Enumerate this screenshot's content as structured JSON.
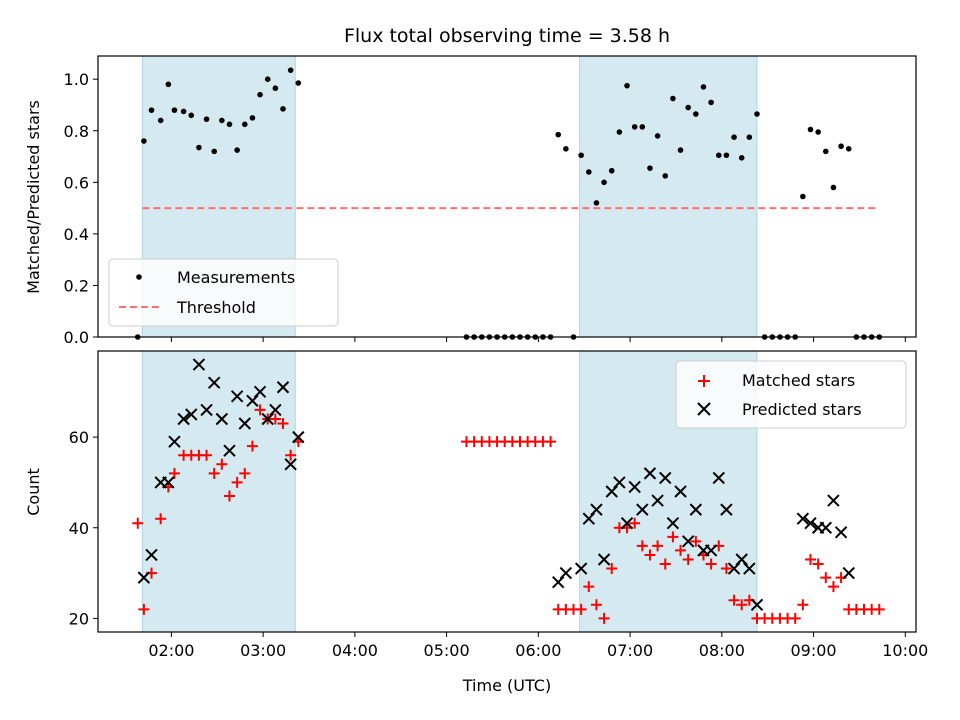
{
  "chart_data": [
    {
      "type": "scatter",
      "title": "Flux total observing time = 3.58 h",
      "xlabel": "",
      "ylabel": "Matched/Predicted stars",
      "ylim": [
        0,
        1.09
      ],
      "yticks": [
        "0.0",
        "0.2",
        "0.4",
        "0.6",
        "0.8",
        "1.0"
      ],
      "xlim": [
        "01:12",
        "10:07"
      ],
      "x_tick_labels_shown": false,
      "grid": false,
      "legend": "lower-left",
      "shaded_intervals": [
        [
          "01:41",
          "03:21"
        ],
        [
          "06:27",
          "08:23"
        ]
      ],
      "series": [
        {
          "name": "Measurements",
          "style": "black dots",
          "points": [
            [
              "01:38",
              0.0
            ],
            [
              "01:42",
              0.76
            ],
            [
              "01:47",
              0.88
            ],
            [
              "01:53",
              0.84
            ],
            [
              "01:58",
              0.98
            ],
            [
              "02:02",
              0.88
            ],
            [
              "02:08",
              0.875
            ],
            [
              "02:13",
              0.86
            ],
            [
              "02:18",
              0.735
            ],
            [
              "02:23",
              0.845
            ],
            [
              "02:28",
              0.72
            ],
            [
              "02:33",
              0.84
            ],
            [
              "02:38",
              0.825
            ],
            [
              "02:43",
              0.725
            ],
            [
              "02:48",
              0.825
            ],
            [
              "02:53",
              0.85
            ],
            [
              "02:58",
              0.94
            ],
            [
              "03:03",
              1.0
            ],
            [
              "03:08",
              0.965
            ],
            [
              "03:13",
              0.885
            ],
            [
              "03:18",
              1.035
            ],
            [
              "03:23",
              0.985
            ],
            [
              "05:13",
              0.0
            ],
            [
              "05:18",
              0.0
            ],
            [
              "05:23",
              0.0
            ],
            [
              "05:28",
              0.0
            ],
            [
              "05:33",
              0.0
            ],
            [
              "05:38",
              0.0
            ],
            [
              "05:43",
              0.0
            ],
            [
              "05:48",
              0.0
            ],
            [
              "05:53",
              0.0
            ],
            [
              "05:58",
              0.0
            ],
            [
              "06:03",
              0.0
            ],
            [
              "06:08",
              0.0
            ],
            [
              "06:13",
              0.785
            ],
            [
              "06:18",
              0.73
            ],
            [
              "06:23",
              0.0
            ],
            [
              "06:28",
              0.705
            ],
            [
              "06:33",
              0.64
            ],
            [
              "06:38",
              0.52
            ],
            [
              "06:43",
              0.6
            ],
            [
              "06:48",
              0.645
            ],
            [
              "06:53",
              0.795
            ],
            [
              "06:58",
              0.975
            ],
            [
              "07:03",
              0.815
            ],
            [
              "07:08",
              0.815
            ],
            [
              "07:13",
              0.655
            ],
            [
              "07:18",
              0.78
            ],
            [
              "07:23",
              0.625
            ],
            [
              "07:28",
              0.925
            ],
            [
              "07:33",
              0.725
            ],
            [
              "07:38",
              0.89
            ],
            [
              "07:43",
              0.865
            ],
            [
              "07:48",
              0.97
            ],
            [
              "07:53",
              0.91
            ],
            [
              "07:58",
              0.705
            ],
            [
              "08:03",
              0.705
            ],
            [
              "08:08",
              0.775
            ],
            [
              "08:13",
              0.695
            ],
            [
              "08:18",
              0.775
            ],
            [
              "08:23",
              0.865
            ],
            [
              "08:28",
              0.0
            ],
            [
              "08:33",
              0.0
            ],
            [
              "08:38",
              0.0
            ],
            [
              "08:43",
              0.0
            ],
            [
              "08:48",
              0.0
            ],
            [
              "08:53",
              0.545
            ],
            [
              "08:58",
              0.805
            ],
            [
              "09:03",
              0.795
            ],
            [
              "09:08",
              0.72
            ],
            [
              "09:13",
              0.58
            ],
            [
              "09:18",
              0.74
            ],
            [
              "09:23",
              0.73
            ],
            [
              "09:28",
              0.0
            ],
            [
              "09:33",
              0.0
            ],
            [
              "09:38",
              0.0
            ],
            [
              "09:43",
              0.0
            ]
          ]
        },
        {
          "name": "Threshold",
          "style": "red dashed line",
          "points": [
            [
              "01:41",
              0.5
            ],
            [
              "09:43",
              0.5
            ]
          ]
        }
      ]
    },
    {
      "type": "scatter",
      "title": "",
      "xlabel": "Time (UTC)",
      "ylabel": "Count",
      "ylim": [
        17,
        79
      ],
      "yticks": [
        "20",
        "40",
        "60"
      ],
      "xlim": [
        "01:12",
        "10:07"
      ],
      "xticks": [
        "02:00",
        "03:00",
        "04:00",
        "05:00",
        "06:00",
        "07:00",
        "08:00",
        "09:00",
        "10:00"
      ],
      "grid": false,
      "legend": "upper-right",
      "shaded_intervals": [
        [
          "01:41",
          "03:21"
        ],
        [
          "06:27",
          "08:23"
        ]
      ],
      "series": [
        {
          "name": "Matched stars",
          "style": "red plus markers",
          "points": [
            [
              "01:38",
              41
            ],
            [
              "01:42",
              22
            ],
            [
              "01:47",
              30
            ],
            [
              "01:53",
              42
            ],
            [
              "01:58",
              49
            ],
            [
              "02:02",
              52
            ],
            [
              "02:08",
              56
            ],
            [
              "02:13",
              56
            ],
            [
              "02:18",
              56
            ],
            [
              "02:23",
              56
            ],
            [
              "02:28",
              52
            ],
            [
              "02:33",
              54
            ],
            [
              "02:38",
              47
            ],
            [
              "02:43",
              50
            ],
            [
              "02:48",
              52
            ],
            [
              "02:53",
              58
            ],
            [
              "02:58",
              66
            ],
            [
              "03:03",
              64
            ],
            [
              "03:08",
              64
            ],
            [
              "03:13",
              63
            ],
            [
              "03:18",
              56
            ],
            [
              "03:23",
              59
            ],
            [
              "05:13",
              59
            ],
            [
              "05:18",
              59
            ],
            [
              "05:23",
              59
            ],
            [
              "05:28",
              59
            ],
            [
              "05:33",
              59
            ],
            [
              "05:38",
              59
            ],
            [
              "05:43",
              59
            ],
            [
              "05:48",
              59
            ],
            [
              "05:53",
              59
            ],
            [
              "05:58",
              59
            ],
            [
              "06:03",
              59
            ],
            [
              "06:08",
              59
            ],
            [
              "06:13",
              22
            ],
            [
              "06:18",
              22
            ],
            [
              "06:23",
              22
            ],
            [
              "06:28",
              22
            ],
            [
              "06:33",
              27
            ],
            [
              "06:38",
              23
            ],
            [
              "06:43",
              20
            ],
            [
              "06:48",
              31
            ],
            [
              "06:53",
              40
            ],
            [
              "06:58",
              40
            ],
            [
              "07:03",
              41
            ],
            [
              "07:08",
              36
            ],
            [
              "07:13",
              34
            ],
            [
              "07:18",
              36
            ],
            [
              "07:23",
              32
            ],
            [
              "07:28",
              38
            ],
            [
              "07:33",
              35
            ],
            [
              "07:38",
              33
            ],
            [
              "07:43",
              37
            ],
            [
              "07:48",
              34
            ],
            [
              "07:53",
              32
            ],
            [
              "07:58",
              36
            ],
            [
              "08:03",
              31
            ],
            [
              "08:08",
              24
            ],
            [
              "08:13",
              23
            ],
            [
              "08:18",
              24
            ],
            [
              "08:23",
              20
            ],
            [
              "08:28",
              20
            ],
            [
              "08:33",
              20
            ],
            [
              "08:38",
              20
            ],
            [
              "08:43",
              20
            ],
            [
              "08:48",
              20
            ],
            [
              "08:53",
              23
            ],
            [
              "08:58",
              33
            ],
            [
              "09:03",
              32
            ],
            [
              "09:08",
              29
            ],
            [
              "09:13",
              27
            ],
            [
              "09:18",
              29
            ],
            [
              "09:23",
              22
            ],
            [
              "09:28",
              22
            ],
            [
              "09:33",
              22
            ],
            [
              "09:38",
              22
            ],
            [
              "09:43",
              22
            ]
          ]
        },
        {
          "name": "Predicted stars",
          "style": "black x markers",
          "points": [
            [
              "01:42",
              29
            ],
            [
              "01:47",
              34
            ],
            [
              "01:53",
              50
            ],
            [
              "01:58",
              50
            ],
            [
              "02:02",
              59
            ],
            [
              "02:08",
              64
            ],
            [
              "02:13",
              65
            ],
            [
              "02:18",
              76
            ],
            [
              "02:23",
              66
            ],
            [
              "02:28",
              72
            ],
            [
              "02:33",
              64
            ],
            [
              "02:38",
              57
            ],
            [
              "02:43",
              69
            ],
            [
              "02:48",
              63
            ],
            [
              "02:53",
              68
            ],
            [
              "02:58",
              70
            ],
            [
              "03:03",
              64
            ],
            [
              "03:08",
              66
            ],
            [
              "03:13",
              71
            ],
            [
              "03:18",
              54
            ],
            [
              "03:23",
              60
            ],
            [
              "06:13",
              28
            ],
            [
              "06:18",
              30
            ],
            [
              "06:28",
              31
            ],
            [
              "06:33",
              42
            ],
            [
              "06:38",
              44
            ],
            [
              "06:43",
              33
            ],
            [
              "06:48",
              48
            ],
            [
              "06:53",
              50
            ],
            [
              "06:58",
              41
            ],
            [
              "07:03",
              49
            ],
            [
              "07:08",
              44
            ],
            [
              "07:13",
              52
            ],
            [
              "07:18",
              46
            ],
            [
              "07:23",
              51
            ],
            [
              "07:28",
              41
            ],
            [
              "07:33",
              48
            ],
            [
              "07:38",
              37
            ],
            [
              "07:43",
              44
            ],
            [
              "07:48",
              35
            ],
            [
              "07:53",
              35
            ],
            [
              "07:58",
              51
            ],
            [
              "08:03",
              44
            ],
            [
              "08:08",
              31
            ],
            [
              "08:13",
              33
            ],
            [
              "08:18",
              31
            ],
            [
              "08:23",
              23
            ],
            [
              "08:53",
              42
            ],
            [
              "08:58",
              41
            ],
            [
              "09:03",
              40
            ],
            [
              "09:08",
              40
            ],
            [
              "09:13",
              46
            ],
            [
              "09:18",
              39
            ],
            [
              "09:23",
              30
            ]
          ]
        }
      ]
    }
  ],
  "colors": {
    "shading": "#d4eaf0",
    "shading_edge": "#a9d6e5",
    "measurements": "#000000",
    "threshold": "#ff7070",
    "matched": "#ff0000",
    "predicted": "#000000"
  },
  "legend_top": [
    "Measurements",
    "Threshold"
  ],
  "legend_bottom": [
    "Matched stars",
    "Predicted stars"
  ]
}
